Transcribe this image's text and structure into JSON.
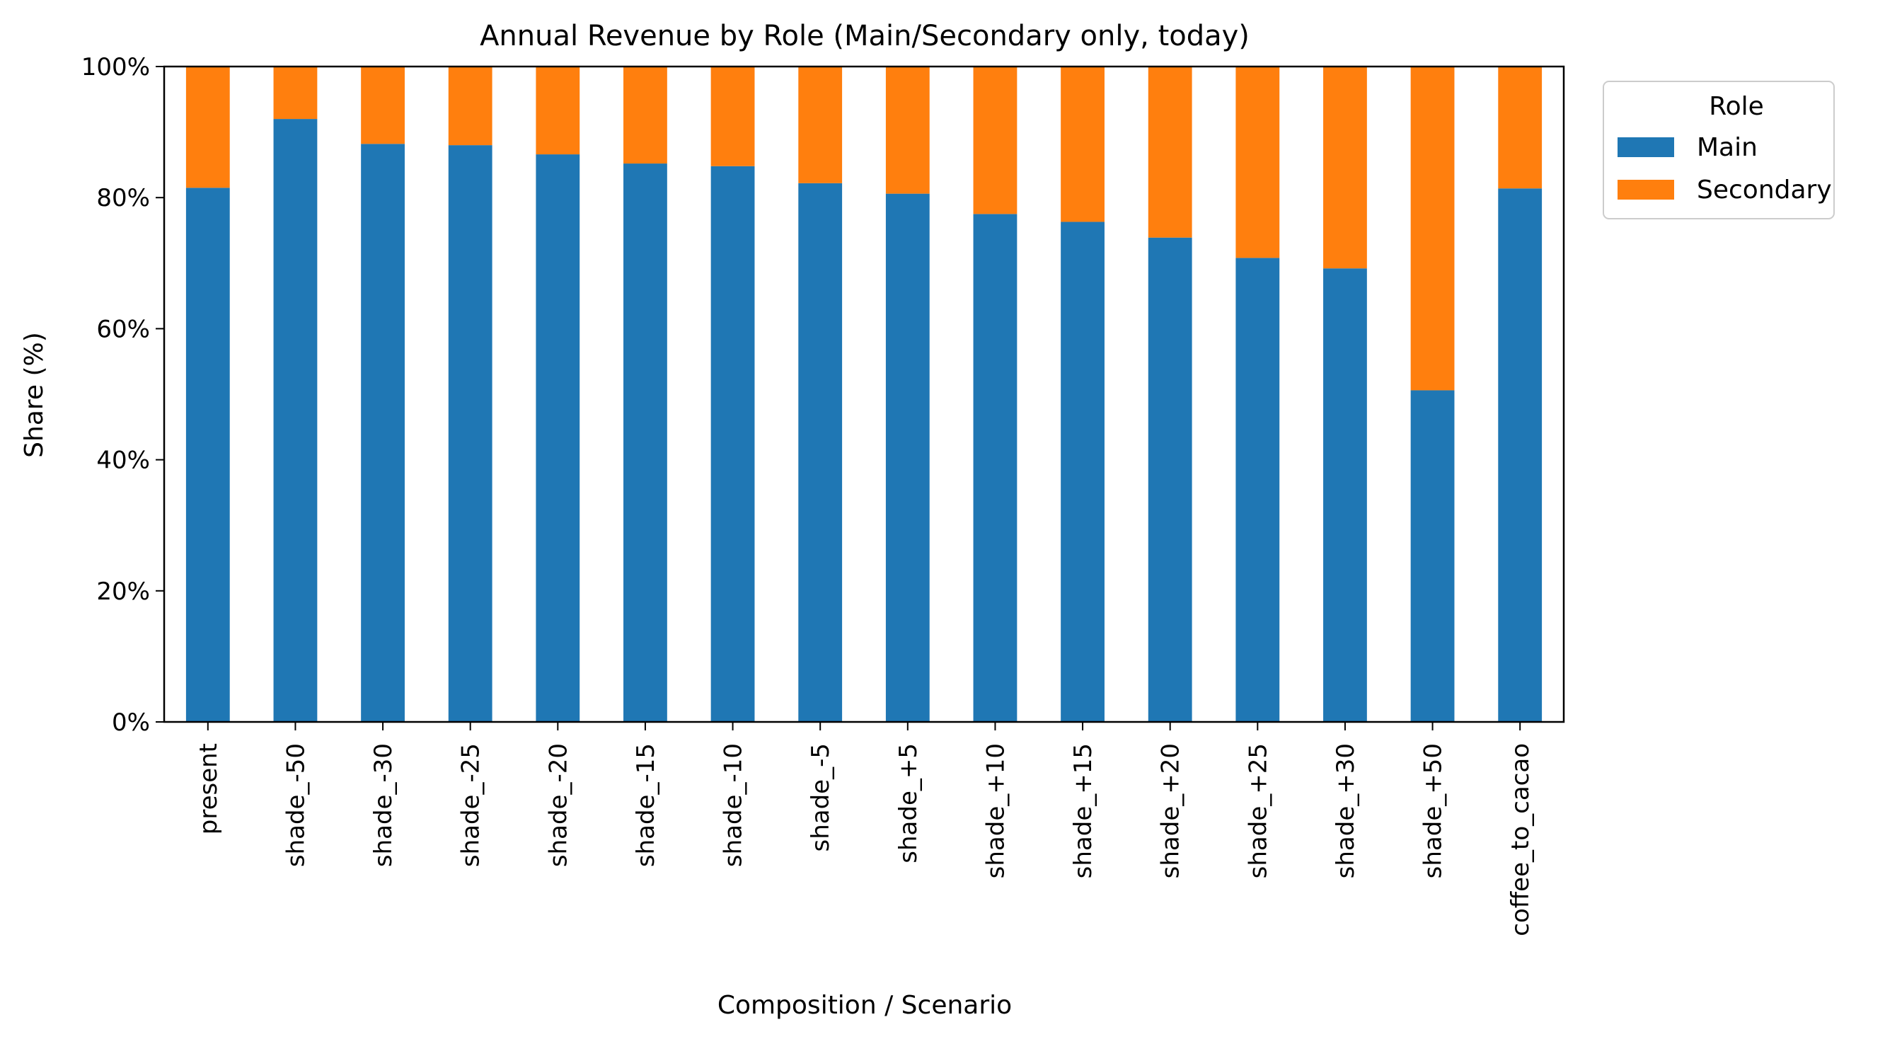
{
  "chart_data": {
    "type": "bar",
    "stacked": true,
    "title": "Annual Revenue by Role (Main/Secondary only, today)",
    "xlabel": "Composition / Scenario",
    "ylabel": "Share (%)",
    "ylim": [
      0,
      100
    ],
    "yticks": [
      "0%",
      "20%",
      "40%",
      "60%",
      "80%",
      "100%"
    ],
    "categories": [
      "present",
      "shade_-50",
      "shade_-30",
      "shade_-25",
      "shade_-20",
      "shade_-15",
      "shade_-10",
      "shade_-5",
      "shade_+5",
      "shade_+10",
      "shade_+15",
      "shade_+20",
      "shade_+25",
      "shade_+30",
      "shade_+50",
      "coffee_to_cacao"
    ],
    "series": [
      {
        "name": "Main",
        "color": "#1f77b4",
        "values": [
          81.5,
          92.0,
          88.2,
          88.0,
          86.6,
          85.2,
          84.8,
          82.2,
          80.6,
          77.5,
          76.3,
          73.9,
          70.8,
          69.2,
          50.6,
          81.4
        ]
      },
      {
        "name": "Secondary",
        "color": "#ff7f0e",
        "values": [
          18.5,
          8.0,
          11.8,
          12.0,
          13.4,
          14.8,
          15.2,
          17.8,
          19.4,
          22.5,
          23.7,
          26.1,
          29.2,
          30.8,
          49.4,
          18.6
        ]
      }
    ],
    "legend": {
      "title": "Role",
      "position": "upper right, outside plot"
    },
    "grid": false
  }
}
